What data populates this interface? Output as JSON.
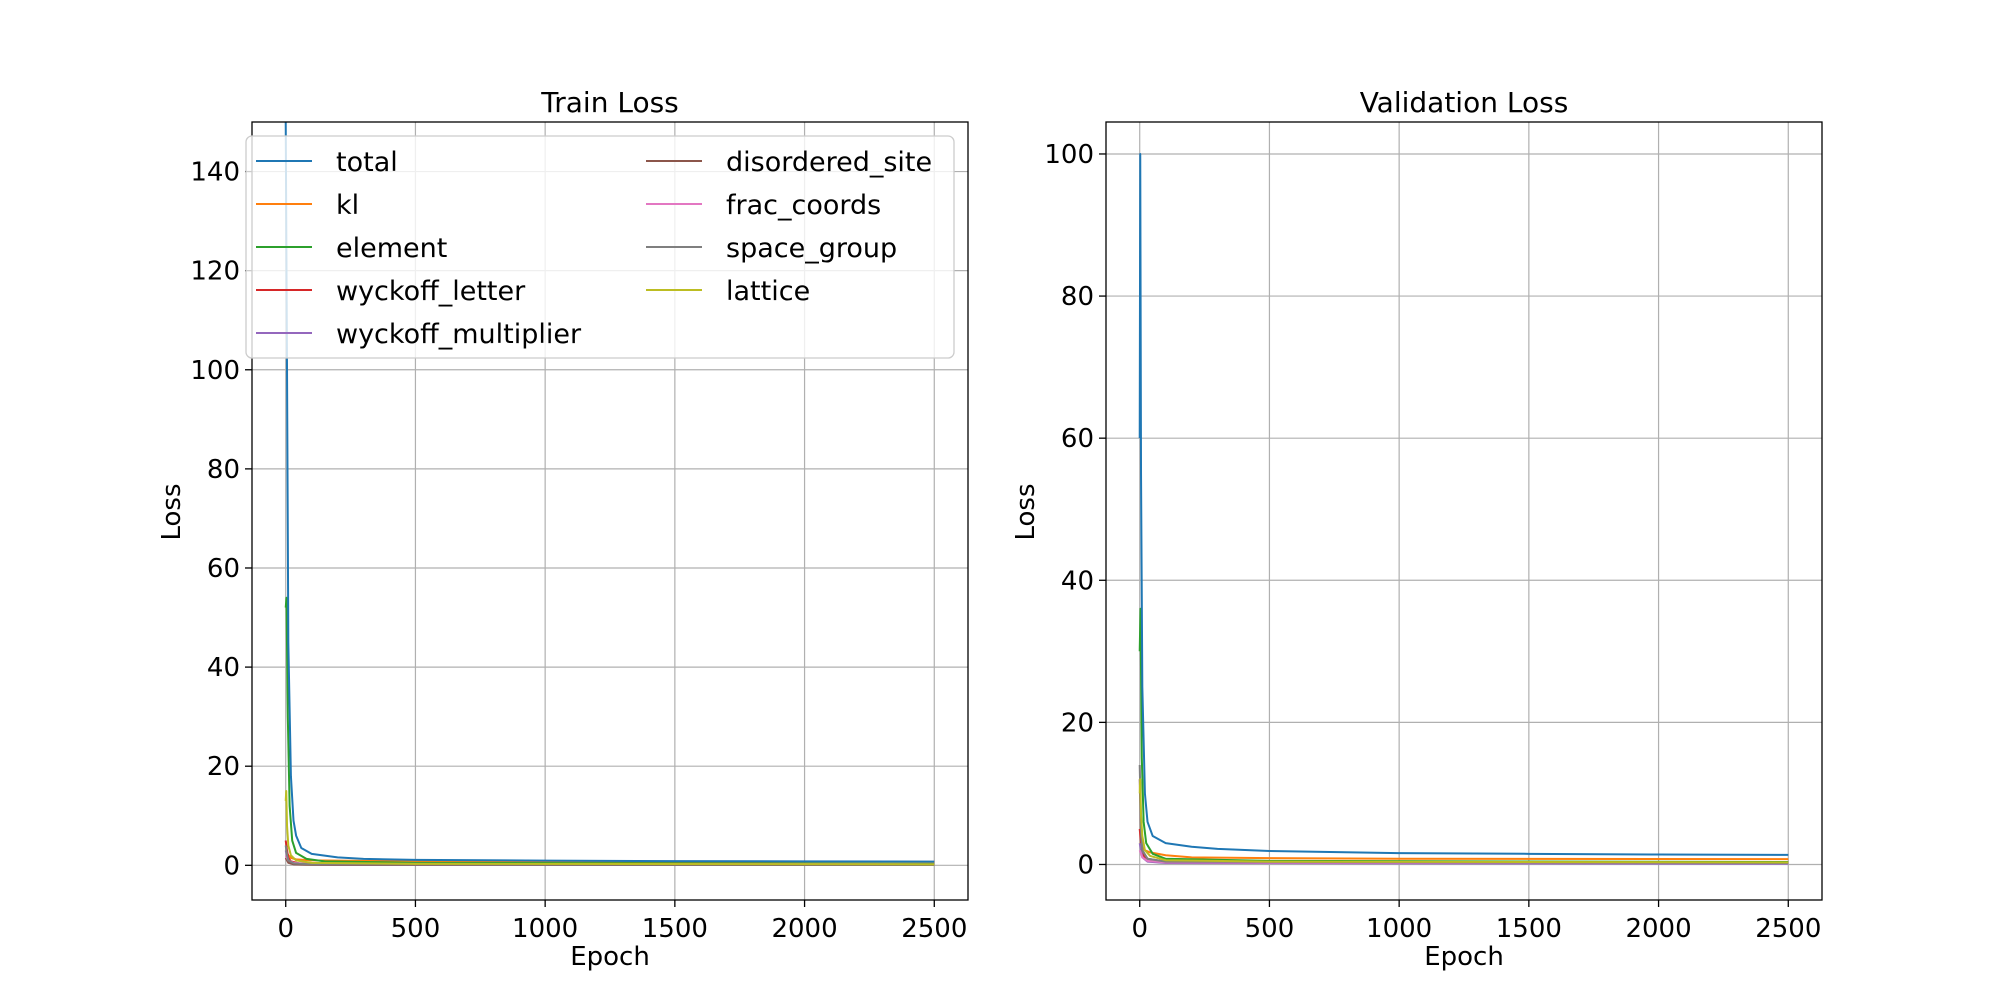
{
  "chart_data": [
    {
      "type": "line",
      "title": "Train Loss",
      "xlabel": "Epoch",
      "ylabel": "Loss",
      "xlim": [
        -130,
        2630
      ],
      "ylim": [
        -7,
        150
      ],
      "xticks": [
        0,
        500,
        1000,
        1500,
        2000,
        2500
      ],
      "yticks": [
        0,
        20,
        40,
        60,
        80,
        100,
        120,
        140
      ],
      "xtick_labels": [
        "0",
        "500",
        "1000",
        "1500",
        "2000",
        "2500"
      ],
      "ytick_labels": [
        "0",
        "20",
        "40",
        "60",
        "80",
        "100",
        "120",
        "140"
      ],
      "grid": true,
      "legend": {
        "placement": "top",
        "columns": 2
      },
      "series": [
        {
          "name": "total",
          "color": "#1f77b4",
          "x": [
            0,
            5,
            10,
            20,
            30,
            40,
            60,
            100,
            200,
            300,
            500,
            1000,
            1500,
            2000,
            2500
          ],
          "y": [
            150,
            100,
            45,
            18,
            9,
            6,
            3.5,
            2.3,
            1.6,
            1.3,
            1.1,
            0.95,
            0.85,
            0.8,
            0.75
          ]
        },
        {
          "name": "kl",
          "color": "#ff7f0e",
          "x": [
            0,
            5,
            10,
            20,
            40,
            100,
            300,
            1000,
            2500
          ],
          "y": [
            3,
            2.5,
            2,
            1.5,
            1.2,
            1.0,
            0.9,
            0.8,
            0.7
          ]
        },
        {
          "name": "element",
          "color": "#2ca02c",
          "x": [
            0,
            3,
            8,
            15,
            25,
            40,
            80,
            150,
            500,
            2500
          ],
          "y": [
            52,
            54,
            30,
            12,
            5,
            2.5,
            1.3,
            0.8,
            0.5,
            0.3
          ]
        },
        {
          "name": "wyckoff_letter",
          "color": "#d62728",
          "x": [
            0,
            5,
            10,
            20,
            50,
            200,
            2500
          ],
          "y": [
            5,
            3,
            1.5,
            0.8,
            0.4,
            0.2,
            0.1
          ]
        },
        {
          "name": "wyckoff_multiplier",
          "color": "#9467bd",
          "x": [
            0,
            5,
            10,
            20,
            50,
            200,
            2500
          ],
          "y": [
            3,
            2,
            1,
            0.5,
            0.2,
            0.1,
            0.05
          ]
        },
        {
          "name": "disordered_site",
          "color": "#8c564b",
          "x": [
            0,
            5,
            10,
            30,
            100,
            2500
          ],
          "y": [
            1.5,
            1,
            0.5,
            0.2,
            0.1,
            0.05
          ]
        },
        {
          "name": "frac_coords",
          "color": "#e377c2",
          "x": [
            0,
            5,
            10,
            30,
            100,
            2500
          ],
          "y": [
            2,
            1.5,
            1,
            0.5,
            0.3,
            0.2
          ]
        },
        {
          "name": "space_group",
          "color": "#7f7f7f",
          "x": [
            0,
            5,
            10,
            30,
            100,
            2500
          ],
          "y": [
            4,
            2,
            1,
            0.4,
            0.2,
            0.1
          ]
        },
        {
          "name": "lattice",
          "color": "#bcbd22",
          "x": [
            0,
            2,
            5,
            10,
            20,
            40,
            100,
            500,
            2500
          ],
          "y": [
            13,
            15,
            8,
            4,
            2,
            1,
            0.5,
            0.3,
            0.2
          ]
        }
      ]
    },
    {
      "type": "line",
      "title": "Validation Loss",
      "xlabel": "Epoch",
      "ylabel": "Loss",
      "xlim": [
        -130,
        2630
      ],
      "ylim": [
        -5,
        104.5
      ],
      "xticks": [
        0,
        500,
        1000,
        1500,
        2000,
        2500
      ],
      "yticks": [
        0,
        20,
        40,
        60,
        80,
        100
      ],
      "xtick_labels": [
        "0",
        "500",
        "1000",
        "1500",
        "2000",
        "2500"
      ],
      "ytick_labels": [
        "0",
        "20",
        "40",
        "60",
        "80",
        "100"
      ],
      "grid": true,
      "series": [
        {
          "name": "total",
          "color": "#1f77b4",
          "x": [
            0,
            2,
            5,
            10,
            20,
            30,
            50,
            100,
            200,
            300,
            500,
            1000,
            1500,
            2000,
            2500
          ],
          "y": [
            60,
            100,
            55,
            25,
            10,
            6,
            4,
            3,
            2.5,
            2.2,
            1.9,
            1.6,
            1.5,
            1.4,
            1.35
          ]
        },
        {
          "name": "kl",
          "color": "#ff7f0e",
          "x": [
            0,
            5,
            10,
            20,
            40,
            100,
            200,
            500,
            1000,
            2500
          ],
          "y": [
            3,
            3,
            2.5,
            2,
            1.7,
            1.3,
            1.0,
            0.9,
            0.8,
            0.75
          ]
        },
        {
          "name": "element",
          "color": "#2ca02c",
          "x": [
            0,
            3,
            8,
            15,
            25,
            50,
            100,
            500,
            2500
          ],
          "y": [
            30,
            36,
            15,
            6,
            3,
            1.5,
            0.8,
            0.5,
            0.35
          ]
        },
        {
          "name": "wyckoff_letter",
          "color": "#d62728",
          "x": [
            0,
            5,
            10,
            30,
            100,
            500,
            2500
          ],
          "y": [
            5,
            3,
            1.5,
            0.6,
            0.4,
            0.3,
            0.25
          ]
        },
        {
          "name": "wyckoff_multiplier",
          "color": "#9467bd",
          "x": [
            0,
            5,
            10,
            30,
            100,
            2500
          ],
          "y": [
            3,
            2,
            1,
            0.4,
            0.2,
            0.1
          ]
        },
        {
          "name": "disordered_site",
          "color": "#8c564b",
          "x": [
            0,
            5,
            10,
            30,
            100,
            2500
          ],
          "y": [
            12,
            4,
            2,
            0.8,
            0.4,
            0.2
          ]
        },
        {
          "name": "frac_coords",
          "color": "#e377c2",
          "x": [
            0,
            5,
            10,
            30,
            100,
            2500
          ],
          "y": [
            2,
            1.5,
            1,
            0.5,
            0.3,
            0.2
          ]
        },
        {
          "name": "space_group",
          "color": "#7f7f7f",
          "x": [
            0,
            5,
            10,
            30,
            100,
            2500
          ],
          "y": [
            14,
            5,
            2,
            0.8,
            0.4,
            0.2
          ]
        },
        {
          "name": "lattice",
          "color": "#bcbd22",
          "x": [
            0,
            2,
            5,
            10,
            20,
            40,
            100,
            500,
            2500
          ],
          "y": [
            10,
            12,
            7,
            4,
            2,
            1.2,
            0.6,
            0.4,
            0.3
          ]
        }
      ]
    }
  ]
}
